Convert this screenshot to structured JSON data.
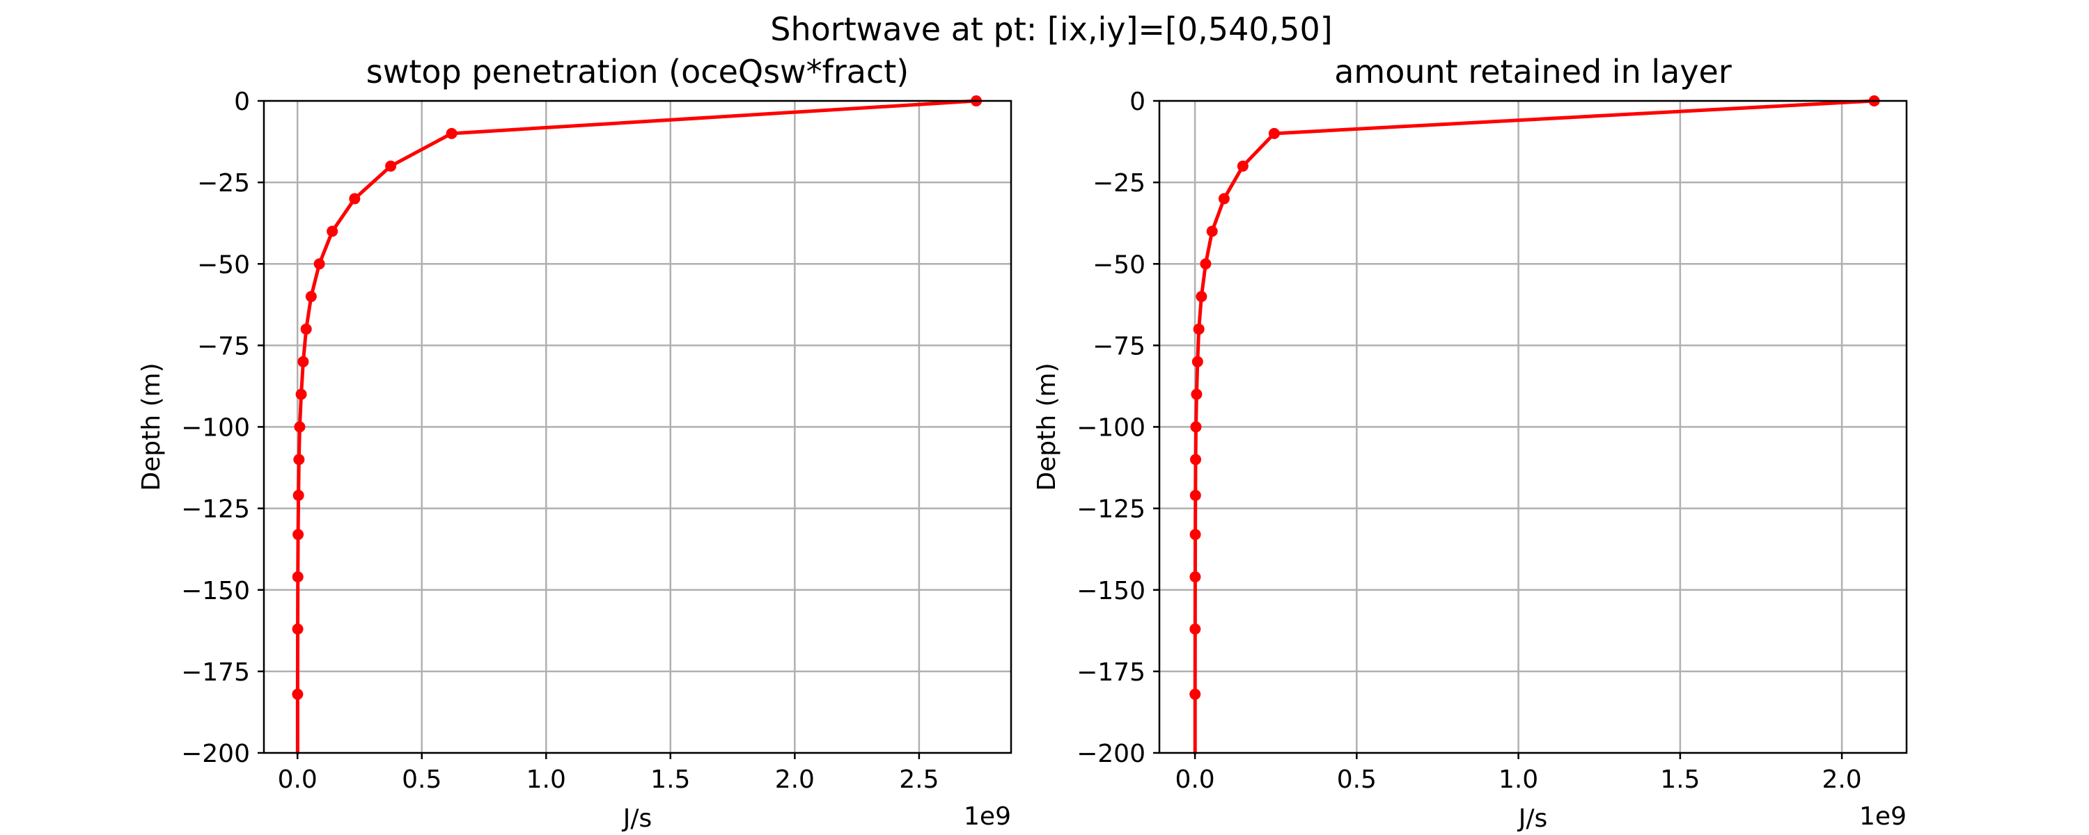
{
  "figure": {
    "suptitle": "Shortwave at pt: [ix,iy]=[0,540,50]"
  },
  "chart_data": [
    {
      "type": "line",
      "title": "swtop penetration (oceQsw*fract)",
      "xlabel": "J/s",
      "ylabel": "Depth (m)",
      "x_offset_label": "1e9",
      "x_scale_factor": 1000000000,
      "xlim": [
        -135000000,
        2870000000
      ],
      "ylim": [
        -200,
        0
      ],
      "xticks": [
        0,
        500000000,
        1000000000,
        1500000000,
        2000000000,
        2500000000
      ],
      "xtick_labels": [
        "0.0",
        "0.5",
        "1.0",
        "1.5",
        "2.0",
        "2.5"
      ],
      "yticks": [
        0,
        -25,
        -50,
        -75,
        -100,
        -125,
        -150,
        -175,
        -200
      ],
      "ytick_labels": [
        "0",
        "−25",
        "−50",
        "−75",
        "−100",
        "−125",
        "−150",
        "−175",
        "−200"
      ],
      "grid": true,
      "series": [
        {
          "color": "#ff0000",
          "marker": "circle",
          "x": [
            2730000000,
            620000000,
            375000000,
            230000000,
            140000000,
            88000000,
            55000000,
            35000000,
            23000000,
            15000000,
            9000000,
            6000000,
            4000000,
            2500000,
            1500000,
            1000000,
            500000
          ],
          "y": [
            0,
            -10,
            -20,
            -30,
            -40,
            -50,
            -60,
            -70,
            -80,
            -90,
            -100,
            -110,
            -121,
            -133,
            -146,
            -162,
            -182
          ],
          "line_continues_to_y": -200
        }
      ]
    },
    {
      "type": "line",
      "title": "amount retained in layer",
      "xlabel": "J/s",
      "ylabel": "Depth (m)",
      "x_offset_label": "1e9",
      "x_scale_factor": 1000000000,
      "xlim": [
        -110000000,
        2200000000
      ],
      "ylim": [
        -200,
        0
      ],
      "xticks": [
        0,
        500000000,
        1000000000,
        1500000000,
        2000000000
      ],
      "xtick_labels": [
        "0.0",
        "0.5",
        "1.0",
        "1.5",
        "2.0"
      ],
      "yticks": [
        0,
        -25,
        -50,
        -75,
        -100,
        -125,
        -150,
        -175,
        -200
      ],
      "ytick_labels": [
        "0",
        "−25",
        "−50",
        "−75",
        "−100",
        "−125",
        "−150",
        "−175",
        "−200"
      ],
      "grid": true,
      "series": [
        {
          "color": "#ff0000",
          "marker": "circle",
          "x": [
            2100000000,
            245000000,
            148000000,
            90000000,
            53000000,
            33000000,
            20000000,
            12000000,
            8000000,
            5000000,
            3000000,
            2000000,
            1500000,
            1000000,
            700000,
            500000,
            300000
          ],
          "y": [
            0,
            -10,
            -20,
            -30,
            -40,
            -50,
            -60,
            -70,
            -80,
            -90,
            -100,
            -110,
            -121,
            -133,
            -146,
            -162,
            -182
          ],
          "line_continues_to_y": -200
        }
      ]
    }
  ]
}
